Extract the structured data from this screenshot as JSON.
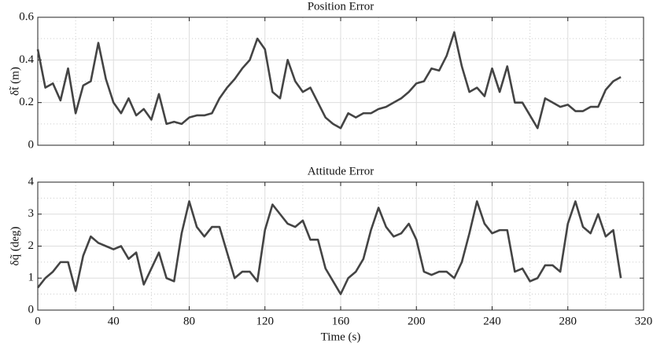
{
  "chart_data": [
    {
      "type": "line",
      "title": "Position Error",
      "ylabel": "δt̃ (m)",
      "color": "#444444",
      "grid": true,
      "minor_grid": true,
      "x": [
        0,
        4,
        8,
        12,
        16,
        20,
        24,
        28,
        32,
        36,
        40,
        44,
        48,
        52,
        56,
        60,
        64,
        68,
        72,
        76,
        80,
        84,
        88,
        92,
        96,
        100,
        104,
        108,
        112,
        116,
        120,
        124,
        128,
        132,
        136,
        140,
        144,
        148,
        152,
        156,
        160,
        164,
        168,
        172,
        176,
        180,
        184,
        188,
        192,
        196,
        200,
        204,
        208,
        212,
        216,
        220,
        224,
        228,
        232,
        236,
        240,
        244,
        248,
        252,
        256,
        260,
        264,
        268,
        272,
        276,
        280,
        284,
        288,
        292,
        296,
        300,
        304,
        308
      ],
      "values": [
        0.45,
        0.27,
        0.29,
        0.21,
        0.36,
        0.15,
        0.28,
        0.3,
        0.48,
        0.31,
        0.2,
        0.15,
        0.22,
        0.14,
        0.17,
        0.12,
        0.24,
        0.1,
        0.11,
        0.1,
        0.13,
        0.14,
        0.14,
        0.15,
        0.22,
        0.27,
        0.31,
        0.36,
        0.4,
        0.5,
        0.45,
        0.25,
        0.22,
        0.4,
        0.3,
        0.25,
        0.27,
        0.2,
        0.13,
        0.1,
        0.08,
        0.15,
        0.13,
        0.15,
        0.15,
        0.17,
        0.18,
        0.2,
        0.22,
        0.25,
        0.29,
        0.3,
        0.36,
        0.35,
        0.42,
        0.53,
        0.37,
        0.25,
        0.27,
        0.23,
        0.36,
        0.25,
        0.37,
        0.2,
        0.2,
        0.14,
        0.08,
        0.22,
        0.2,
        0.18,
        0.19,
        0.16,
        0.16,
        0.18,
        0.18,
        0.26,
        0.3,
        0.32
      ],
      "xlim": [
        0,
        320
      ],
      "xticks": [
        0,
        40,
        80,
        120,
        160,
        200,
        240,
        280,
        320
      ],
      "ylim": [
        0,
        0.6
      ],
      "yticks": [
        0,
        0.2,
        0.4,
        0.6
      ]
    },
    {
      "type": "line",
      "title": "Attitude Error",
      "ylabel": "δq̃ (deg)",
      "xlabel": "Time (s)",
      "color": "#444444",
      "grid": true,
      "minor_grid": true,
      "x": [
        0,
        4,
        8,
        12,
        16,
        20,
        24,
        28,
        32,
        36,
        40,
        44,
        48,
        52,
        56,
        60,
        64,
        68,
        72,
        76,
        80,
        84,
        88,
        92,
        96,
        100,
        104,
        108,
        112,
        116,
        120,
        124,
        128,
        132,
        136,
        140,
        144,
        148,
        152,
        156,
        160,
        164,
        168,
        172,
        176,
        180,
        184,
        188,
        192,
        196,
        200,
        204,
        208,
        212,
        216,
        220,
        224,
        228,
        232,
        236,
        240,
        244,
        248,
        252,
        256,
        260,
        264,
        268,
        272,
        276,
        280,
        284,
        288,
        292,
        296,
        300,
        304,
        308
      ],
      "values": [
        0.7,
        1.0,
        1.2,
        1.5,
        1.5,
        0.6,
        1.7,
        2.3,
        2.1,
        2.0,
        1.9,
        2.0,
        1.6,
        1.8,
        0.8,
        1.3,
        1.8,
        1.0,
        0.9,
        2.4,
        3.4,
        2.6,
        2.3,
        2.6,
        2.6,
        1.8,
        1.0,
        1.2,
        1.2,
        0.9,
        2.5,
        3.3,
        3.0,
        2.7,
        2.6,
        2.8,
        2.2,
        2.2,
        1.3,
        0.9,
        0.5,
        1.0,
        1.2,
        1.6,
        2.5,
        3.2,
        2.6,
        2.3,
        2.4,
        2.7,
        2.2,
        1.2,
        1.1,
        1.2,
        1.2,
        1.0,
        1.5,
        2.4,
        3.4,
        2.7,
        2.4,
        2.5,
        2.5,
        1.2,
        1.3,
        0.9,
        1.0,
        1.4,
        1.4,
        1.2,
        2.7,
        3.4,
        2.6,
        2.4,
        3.0,
        2.3,
        2.5,
        1.0
      ],
      "xlim": [
        0,
        320
      ],
      "xticks": [
        0,
        40,
        80,
        120,
        160,
        200,
        240,
        280,
        320
      ],
      "ylim": [
        0,
        4
      ],
      "yticks": [
        0,
        1,
        2,
        3,
        4
      ]
    }
  ]
}
